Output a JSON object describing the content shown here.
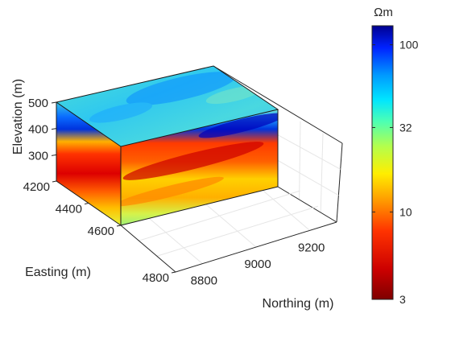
{
  "chart_data": {
    "type": "heatmap",
    "title": "",
    "variable_unit": "Ωm",
    "axes": {
      "elevation": {
        "label": "Elevation (m)",
        "ticks": [
          300,
          400,
          500
        ],
        "range": [
          200,
          500
        ]
      },
      "easting": {
        "label": "Easting (m)",
        "ticks": [
          4200,
          4400,
          4600,
          4800
        ],
        "range": [
          4200,
          4600
        ]
      },
      "northing": {
        "label": "Northing (m)",
        "ticks": [
          8800,
          9000,
          9200
        ],
        "range": [
          8700,
          9300
        ]
      }
    },
    "colorbar": {
      "scale": "log",
      "range": [
        3,
        130
      ],
      "ticks": [
        3,
        10,
        32,
        100
      ],
      "tick_labels": [
        "3",
        "10",
        "32",
        "100"
      ],
      "colormap": "jet (reversed: low = dark red, high = dark blue)"
    },
    "grid": true,
    "layers": [
      {
        "elevation_top": 500,
        "elevation_bottom": 430,
        "resistivity_ohm_m": 50
      },
      {
        "elevation_top": 430,
        "elevation_bottom": 360,
        "resistivity_ohm_m": 100
      },
      {
        "elevation_top": 360,
        "elevation_bottom": 260,
        "resistivity_ohm_m": 4
      },
      {
        "elevation_top": 260,
        "elevation_bottom": 200,
        "resistivity_ohm_m": 20
      }
    ]
  },
  "colors": {
    "axis": "#262626",
    "grid": "#e6e6e6"
  }
}
